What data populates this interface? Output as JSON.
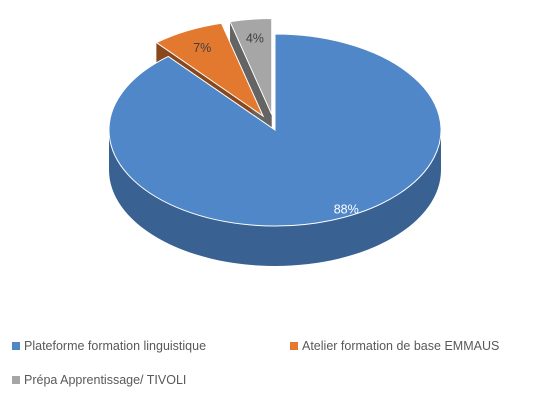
{
  "chart_data": {
    "type": "pie",
    "title": "",
    "series": [
      {
        "name": "",
        "values": [
          88,
          7,
          4
        ],
        "categories": [
          "Plateforme formation linguistique",
          "Atelier formation de base EMMAUS",
          "Prépa Apprentissage/ TIVOLI"
        ]
      }
    ],
    "data_labels": [
      "88%",
      "7%",
      "4%"
    ],
    "colors": [
      "#4f87c9",
      "#e3782f",
      "#a6a6a6"
    ],
    "exploded_slices": [
      1,
      2
    ],
    "style": "3d",
    "legend_position": "bottom"
  }
}
